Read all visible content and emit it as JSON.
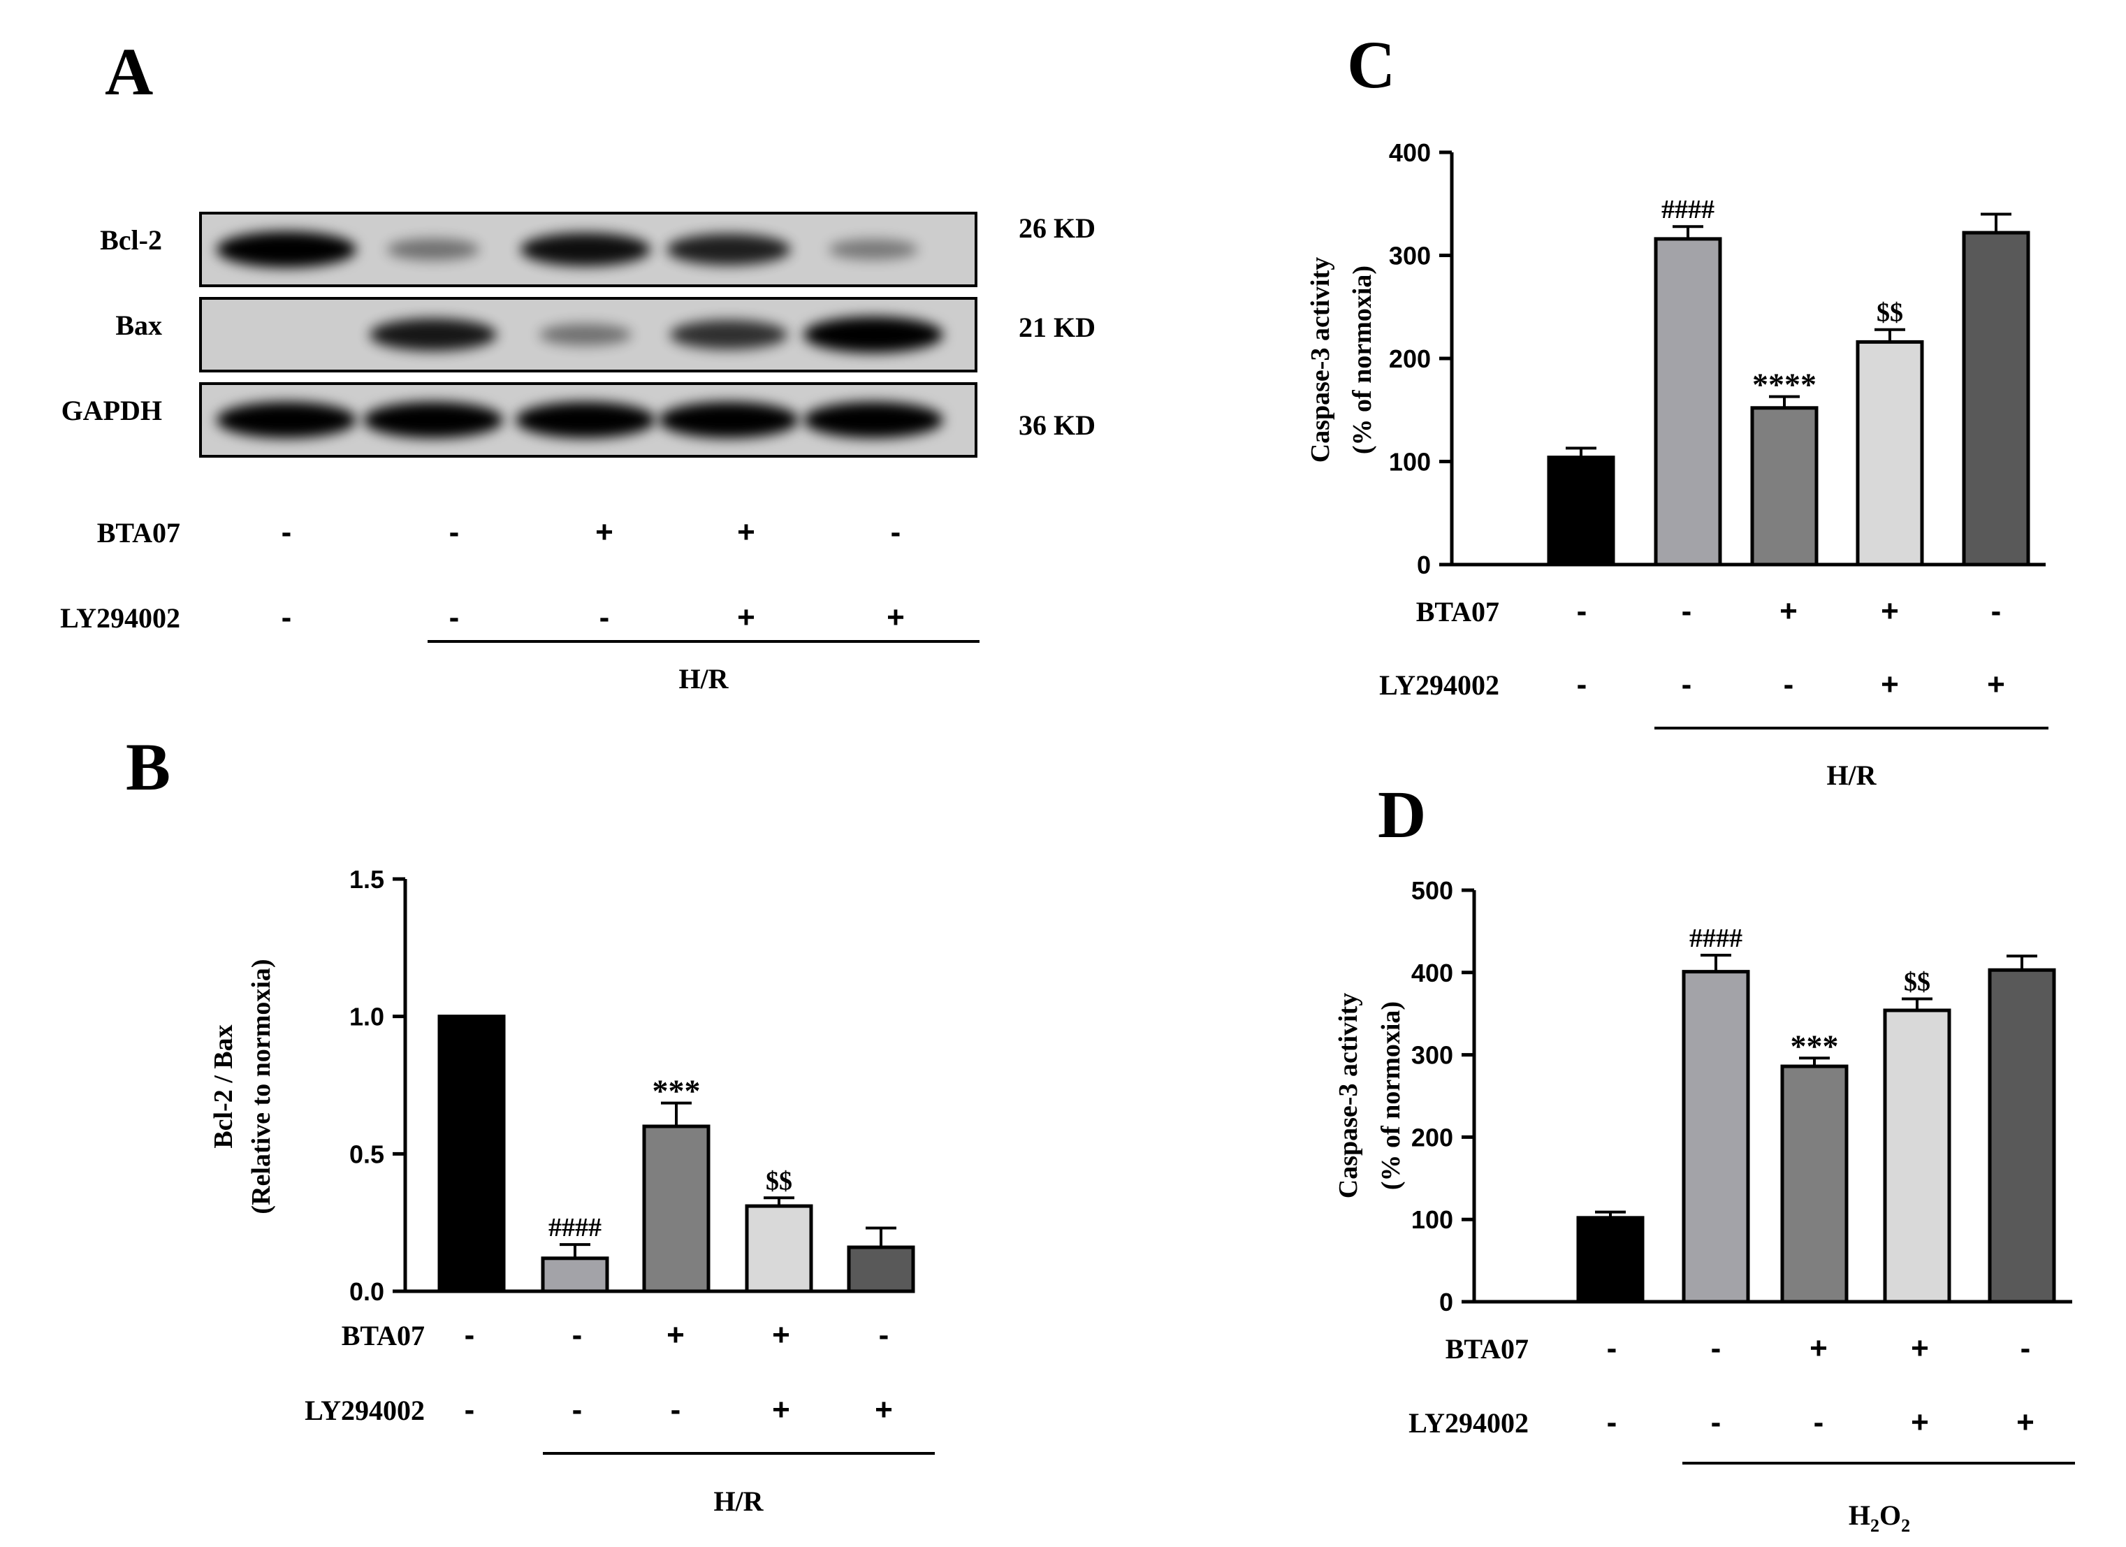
{
  "panels": {
    "A": {
      "letter": "A",
      "blot_rows": [
        {
          "protein": "Bcl-2",
          "size": "26 KD",
          "intensity": [
            1.0,
            0.25,
            0.85,
            0.75,
            0.2
          ]
        },
        {
          "protein": "Bax",
          "size": "21 KD",
          "intensity": [
            0.05,
            0.8,
            0.25,
            0.65,
            1.0
          ]
        },
        {
          "protein": "GAPDH",
          "size": "36 KD",
          "intensity": [
            1.0,
            1.0,
            1.0,
            1.0,
            1.0
          ]
        }
      ],
      "treatments": [
        {
          "label": "BTA07",
          "values": [
            "-",
            "-",
            "+",
            "+",
            "-"
          ]
        },
        {
          "label": "LY294002",
          "values": [
            "-",
            "-",
            "-",
            "+",
            "+"
          ]
        }
      ],
      "condition": "H/R"
    },
    "B": {
      "letter": "B",
      "condition": "H/R"
    },
    "C": {
      "letter": "C",
      "condition": "H/R"
    },
    "D": {
      "letter": "D",
      "condition_main": "H",
      "condition_sub1": "2",
      "condition_mid": "O",
      "condition_sub2": "2"
    }
  },
  "chart_data": [
    {
      "id": "B",
      "type": "bar",
      "ylabel": [
        "Bcl-2 / Bax",
        "(Relative to normoxia)"
      ],
      "ylim": [
        0,
        1.5
      ],
      "yticks": [
        "0.0",
        "0.5",
        "1.0",
        "1.5"
      ],
      "ytick_values": [
        0,
        0.5,
        1.0,
        1.5
      ],
      "values": [
        1.0,
        0.12,
        0.6,
        0.31,
        0.16
      ],
      "errors": [
        0,
        0.05,
        0.085,
        0.03,
        0.07
      ],
      "annotations": [
        "",
        "####",
        "***",
        "$$",
        ""
      ],
      "colors": [
        "#000000",
        "#a3a3a8",
        "#7f7f7f",
        "#d9d9d9",
        "#595959"
      ],
      "treatments": [
        {
          "label": "BTA07",
          "values": [
            "-",
            "-",
            "+",
            "+",
            "-"
          ]
        },
        {
          "label": "LY294002",
          "values": [
            "-",
            "-",
            "-",
            "+",
            "+"
          ]
        }
      ]
    },
    {
      "id": "C",
      "type": "bar",
      "ylabel": [
        "Caspase-3 activity",
        "(% of normoxia)"
      ],
      "ylim": [
        0,
        400
      ],
      "yticks": [
        "0",
        "100",
        "200",
        "300",
        "400"
      ],
      "ytick_values": [
        0,
        100,
        200,
        300,
        400
      ],
      "values": [
        104,
        316,
        152,
        216,
        322
      ],
      "errors": [
        9,
        12,
        11,
        12,
        18
      ],
      "annotations": [
        "",
        "####",
        "****",
        "$$",
        ""
      ],
      "colors": [
        "#000000",
        "#a3a3a8",
        "#7f7f7f",
        "#d9d9d9",
        "#595959"
      ],
      "treatments": [
        {
          "label": "BTA07",
          "values": [
            "-",
            "-",
            "+",
            "+",
            "-"
          ]
        },
        {
          "label": "LY294002",
          "values": [
            "-",
            "-",
            "-",
            "+",
            "+"
          ]
        }
      ]
    },
    {
      "id": "D",
      "type": "bar",
      "ylabel": [
        "Caspase-3 activity",
        "(% of normoxia)"
      ],
      "ylim": [
        0,
        500
      ],
      "yticks": [
        "0",
        "100",
        "200",
        "300",
        "400",
        "500"
      ],
      "ytick_values": [
        0,
        100,
        200,
        300,
        400,
        500
      ],
      "values": [
        102,
        401,
        286,
        354,
        403
      ],
      "errors": [
        7,
        20,
        10,
        14,
        17
      ],
      "annotations": [
        "",
        "####",
        "***",
        "$$",
        ""
      ],
      "colors": [
        "#000000",
        "#a3a3a8",
        "#7f7f7f",
        "#d9d9d9",
        "#595959"
      ],
      "treatments": [
        {
          "label": "BTA07",
          "values": [
            "-",
            "-",
            "+",
            "+",
            "-"
          ]
        },
        {
          "label": "LY294002",
          "values": [
            "-",
            "-",
            "-",
            "+",
            "+"
          ]
        }
      ]
    }
  ]
}
